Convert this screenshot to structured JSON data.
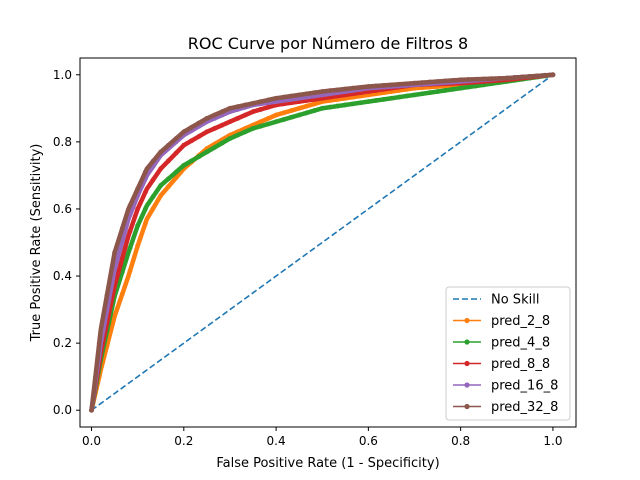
{
  "chart_data": {
    "type": "line",
    "title": "ROC Curve por Número de Filtros 8",
    "xlabel": "False Positive Rate (1 - Specificity)",
    "ylabel": "True Positive Rate (Sensitivity)",
    "xlim": [
      -0.025,
      1.05
    ],
    "ylim": [
      -0.05,
      1.05
    ],
    "xticks": [
      "0.0",
      "0.2",
      "0.4",
      "0.6",
      "0.8",
      "1.0"
    ],
    "yticks": [
      "0.0",
      "0.2",
      "0.4",
      "0.6",
      "0.8",
      "1.0"
    ],
    "legend_position": "lower-right",
    "grid": false,
    "series": [
      {
        "name": "No Skill",
        "color": "#1f77b4",
        "style": "dashed",
        "points": [
          [
            0,
            0
          ],
          [
            1,
            1
          ]
        ]
      },
      {
        "name": "pred_2_8",
        "color": "#ff7f0e",
        "style": "solid-marker",
        "points": [
          [
            0,
            0
          ],
          [
            0.02,
            0.12
          ],
          [
            0.05,
            0.28
          ],
          [
            0.08,
            0.4
          ],
          [
            0.1,
            0.49
          ],
          [
            0.12,
            0.57
          ],
          [
            0.15,
            0.64
          ],
          [
            0.2,
            0.72
          ],
          [
            0.25,
            0.78
          ],
          [
            0.3,
            0.82
          ],
          [
            0.35,
            0.85
          ],
          [
            0.4,
            0.88
          ],
          [
            0.5,
            0.92
          ],
          [
            0.6,
            0.94
          ],
          [
            0.7,
            0.96
          ],
          [
            0.8,
            0.97
          ],
          [
            0.9,
            0.985
          ],
          [
            1,
            1
          ]
        ]
      },
      {
        "name": "pred_4_8",
        "color": "#2ca02c",
        "style": "solid-marker",
        "points": [
          [
            0,
            0
          ],
          [
            0.02,
            0.15
          ],
          [
            0.05,
            0.34
          ],
          [
            0.08,
            0.47
          ],
          [
            0.1,
            0.55
          ],
          [
            0.12,
            0.61
          ],
          [
            0.15,
            0.67
          ],
          [
            0.2,
            0.73
          ],
          [
            0.25,
            0.77
          ],
          [
            0.3,
            0.81
          ],
          [
            0.35,
            0.84
          ],
          [
            0.4,
            0.86
          ],
          [
            0.5,
            0.9
          ],
          [
            0.6,
            0.92
          ],
          [
            0.7,
            0.94
          ],
          [
            0.8,
            0.96
          ],
          [
            0.9,
            0.98
          ],
          [
            1,
            1
          ]
        ]
      },
      {
        "name": "pred_8_8",
        "color": "#d62728",
        "style": "solid-marker",
        "points": [
          [
            0,
            0
          ],
          [
            0.02,
            0.17
          ],
          [
            0.05,
            0.37
          ],
          [
            0.08,
            0.52
          ],
          [
            0.1,
            0.6
          ],
          [
            0.12,
            0.66
          ],
          [
            0.15,
            0.72
          ],
          [
            0.2,
            0.79
          ],
          [
            0.25,
            0.83
          ],
          [
            0.3,
            0.86
          ],
          [
            0.35,
            0.89
          ],
          [
            0.4,
            0.91
          ],
          [
            0.5,
            0.93
          ],
          [
            0.6,
            0.95
          ],
          [
            0.7,
            0.97
          ],
          [
            0.8,
            0.975
          ],
          [
            0.9,
            0.985
          ],
          [
            1,
            1
          ]
        ]
      },
      {
        "name": "pred_16_8",
        "color": "#9467bd",
        "style": "solid-marker",
        "points": [
          [
            0,
            0
          ],
          [
            0.02,
            0.2
          ],
          [
            0.05,
            0.42
          ],
          [
            0.08,
            0.57
          ],
          [
            0.1,
            0.64
          ],
          [
            0.12,
            0.7
          ],
          [
            0.15,
            0.76
          ],
          [
            0.2,
            0.82
          ],
          [
            0.25,
            0.86
          ],
          [
            0.3,
            0.89
          ],
          [
            0.35,
            0.91
          ],
          [
            0.4,
            0.92
          ],
          [
            0.5,
            0.94
          ],
          [
            0.6,
            0.96
          ],
          [
            0.7,
            0.97
          ],
          [
            0.8,
            0.98
          ],
          [
            0.9,
            0.99
          ],
          [
            1,
            1
          ]
        ]
      },
      {
        "name": "pred_32_8",
        "color": "#8c564b",
        "style": "solid-marker",
        "points": [
          [
            0,
            0
          ],
          [
            0.02,
            0.24
          ],
          [
            0.05,
            0.47
          ],
          [
            0.08,
            0.6
          ],
          [
            0.1,
            0.66
          ],
          [
            0.12,
            0.72
          ],
          [
            0.15,
            0.77
          ],
          [
            0.2,
            0.83
          ],
          [
            0.25,
            0.87
          ],
          [
            0.3,
            0.9
          ],
          [
            0.35,
            0.915
          ],
          [
            0.4,
            0.93
          ],
          [
            0.5,
            0.95
          ],
          [
            0.6,
            0.965
          ],
          [
            0.7,
            0.975
          ],
          [
            0.8,
            0.985
          ],
          [
            0.9,
            0.99
          ],
          [
            1,
            1
          ]
        ]
      }
    ]
  }
}
